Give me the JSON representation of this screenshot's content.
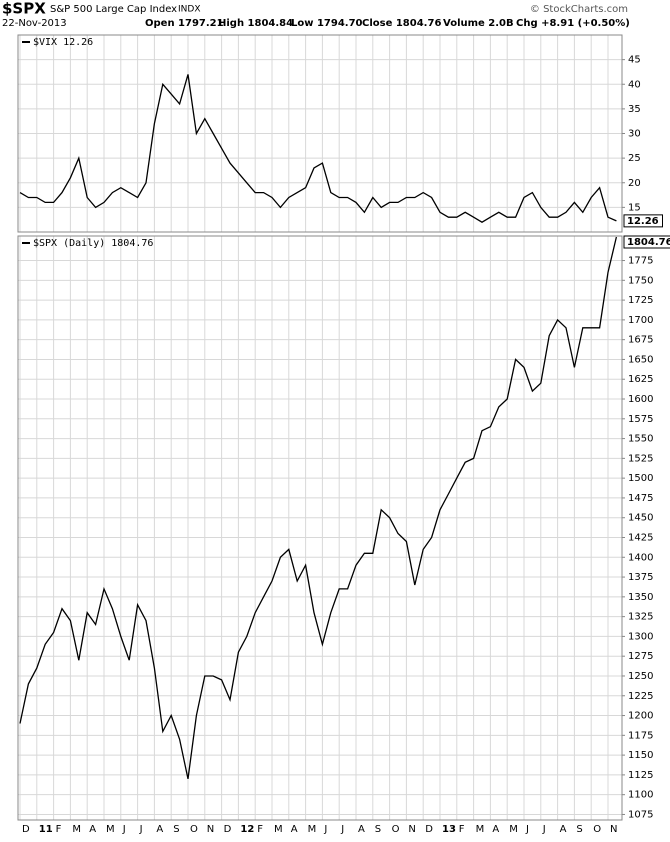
{
  "header": {
    "title": "$SPX",
    "subtitle": "S&P 500 Large Cap Index",
    "exchange": "INDX",
    "date": "22-Nov-2013",
    "quote": [
      "Open 1797.21",
      "High 1804.84",
      "Low 1794.70",
      "Close 1804.76",
      "Volume 2.0B",
      "Chg +8.91 (+0.50%)"
    ],
    "source": "© StockCharts.com"
  },
  "chart_data": [
    {
      "type": "line",
      "ylim": [
        10,
        50
      ],
      "yticks": [
        15,
        20,
        25,
        30,
        35,
        40,
        45
      ],
      "grid": true,
      "series": [
        {
          "name": "$VIX 12.26",
          "color": "#000000",
          "last_label": "12.26",
          "values": [
            18,
            17,
            17,
            16,
            16,
            18,
            21,
            25,
            17,
            15,
            16,
            18,
            19,
            18,
            17,
            20,
            32,
            40,
            38,
            36,
            42,
            30,
            33,
            30,
            27,
            24,
            22,
            20,
            18,
            18,
            17,
            15,
            17,
            18,
            19,
            23,
            24,
            18,
            17,
            17,
            16,
            14,
            17,
            15,
            16,
            16,
            17,
            17,
            18,
            17,
            14,
            13,
            13,
            14,
            13,
            12,
            13,
            14,
            13,
            13,
            17,
            18,
            15,
            13,
            13,
            14,
            16,
            14,
            17,
            19,
            13,
            12.26
          ]
        }
      ]
    },
    {
      "type": "line",
      "ylim": [
        1068,
        1806
      ],
      "yticks": [
        1075,
        1100,
        1125,
        1150,
        1175,
        1200,
        1225,
        1250,
        1275,
        1300,
        1325,
        1350,
        1375,
        1400,
        1425,
        1450,
        1475,
        1500,
        1525,
        1550,
        1575,
        1600,
        1625,
        1650,
        1675,
        1700,
        1725,
        1750,
        1775
      ],
      "grid": true,
      "categories": [
        "D",
        null,
        "11",
        null,
        "F",
        null,
        "M",
        null,
        "A",
        null,
        "M",
        null,
        "J",
        null,
        "J",
        null,
        "A",
        null,
        "S",
        null,
        "O",
        null,
        "N",
        null,
        "D",
        null,
        "12",
        null,
        "F",
        null,
        "M",
        null,
        "A",
        null,
        "M",
        null,
        "J",
        null,
        "J",
        null,
        "A",
        null,
        "S",
        null,
        "O",
        null,
        "N",
        null,
        "D",
        null,
        "13",
        null,
        "F",
        null,
        "M",
        null,
        "A",
        null,
        "M",
        null,
        "J",
        null,
        "J",
        null,
        "A",
        null,
        "S",
        null,
        "O",
        null,
        "N",
        null
      ],
      "series": [
        {
          "name": "$SPX (Daily) 1804.76",
          "color": "#000000",
          "last_label": "1804.76",
          "values": [
            1190,
            1240,
            1260,
            1290,
            1305,
            1335,
            1320,
            1270,
            1330,
            1315,
            1360,
            1335,
            1300,
            1270,
            1340,
            1320,
            1260,
            1180,
            1200,
            1170,
            1120,
            1200,
            1250,
            1250,
            1245,
            1220,
            1280,
            1300,
            1330,
            1350,
            1370,
            1400,
            1410,
            1370,
            1390,
            1330,
            1290,
            1330,
            1360,
            1360,
            1390,
            1405,
            1405,
            1460,
            1450,
            1430,
            1420,
            1365,
            1410,
            1425,
            1460,
            1480,
            1500,
            1520,
            1525,
            1560,
            1565,
            1590,
            1600,
            1650,
            1640,
            1610,
            1620,
            1680,
            1700,
            1690,
            1640,
            1690,
            1690,
            1690,
            1760,
            1804.76
          ]
        }
      ]
    }
  ]
}
